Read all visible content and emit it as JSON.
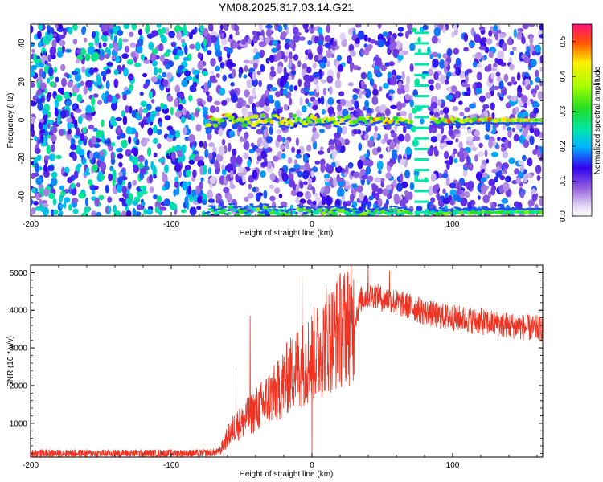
{
  "title": "YM08.2025.317.03.14.G21",
  "colors": {
    "snr_line": "#ee3322",
    "background": "#ffffff",
    "axis": "#000000"
  },
  "chart_data": [
    {
      "type": "heatmap",
      "name": "spectrogram",
      "xlabel": "Height of straight line (km)",
      "ylabel": "Frequency (Hz)",
      "xlim": [
        -200,
        164
      ],
      "ylim": [
        -50,
        50
      ],
      "xticks": [
        -200,
        -100,
        0,
        100
      ],
      "xtick_labels": [
        "-200",
        "-100",
        "0",
        "100"
      ],
      "yticks": [
        -40,
        -20,
        0,
        20,
        40
      ],
      "ytick_labels": [
        "-40",
        "-20",
        "0",
        "20",
        "40"
      ],
      "signal_onset_km": -75,
      "signal_bands_hz": [
        0,
        -48
      ],
      "gap_km": [
        72,
        84
      ],
      "colorbar": {
        "label": "Normalized spectral amplitude",
        "range": [
          0,
          0.55
        ],
        "ticks": [
          0,
          0.1,
          0.2,
          0.3,
          0.4,
          0.5
        ],
        "tick_labels": [
          "0.0",
          "0.1",
          "0.2",
          "0.3",
          "0.4",
          "0.5"
        ]
      }
    },
    {
      "type": "line",
      "name": "snr",
      "xlabel": "Height of straight line (km)",
      "ylabel": "SNR (10 * v/v)",
      "xlim": [
        -200,
        164
      ],
      "ylim": [
        100,
        5200
      ],
      "xticks": [
        -200,
        -100,
        0,
        100
      ],
      "xtick_labels": [
        "-200",
        "-100",
        "0",
        "100"
      ],
      "yticks": [
        1000,
        2000,
        3000,
        4000,
        5000
      ],
      "ytick_labels": [
        "1000",
        "2000",
        "3000",
        "4000",
        "5000"
      ],
      "x": [
        -200,
        -80,
        -66,
        -62,
        -58,
        -54,
        -50,
        -45,
        -40,
        -35,
        -30,
        -25,
        -20,
        -15,
        -10,
        -5,
        0,
        5,
        10,
        15,
        20,
        25,
        30,
        35,
        40,
        45,
        50,
        55,
        60,
        70,
        80,
        90,
        100,
        110,
        120,
        130,
        140,
        150,
        164
      ],
      "y": [
        200,
        200,
        230,
        500,
        750,
        950,
        1000,
        1200,
        1350,
        1500,
        1700,
        1800,
        2100,
        2300,
        2500,
        2600,
        2800,
        2900,
        3200,
        3300,
        3500,
        3600,
        3700,
        4300,
        4400,
        4400,
        4300,
        4300,
        4200,
        4100,
        3950,
        3850,
        3800,
        3750,
        3700,
        3650,
        3600,
        3550,
        3500
      ],
      "spikes": [
        {
          "x": -54,
          "y": 2450
        },
        {
          "x": -44,
          "y": 3850
        },
        {
          "x": -7,
          "y": 4900
        },
        {
          "x": 0,
          "y": 120
        },
        {
          "x": 10,
          "y": 4700
        },
        {
          "x": 25,
          "y": 4900
        },
        {
          "x": 40,
          "y": 5300
        },
        {
          "x": 55,
          "y": 5050
        }
      ]
    }
  ]
}
